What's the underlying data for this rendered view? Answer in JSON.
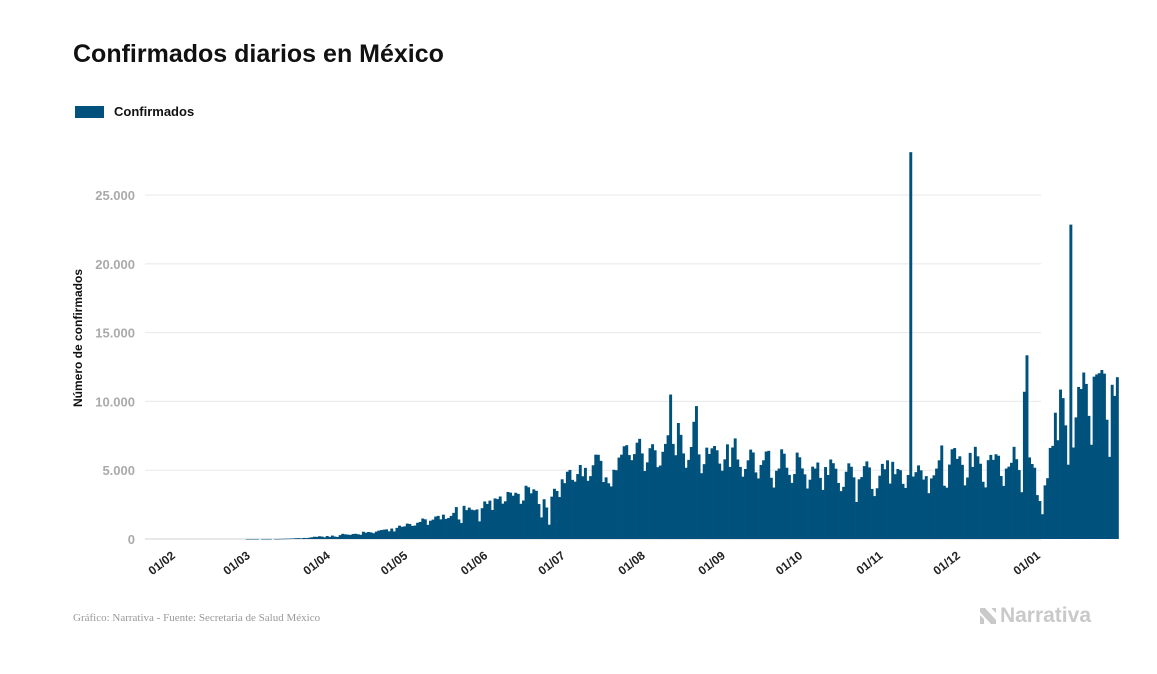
{
  "title": "Confirmados diarios en México",
  "legend": {
    "label": "Confirmados",
    "color": "#00527c"
  },
  "source": "Gráfico: Narrativa - Fuente: Secretaria de Salud México",
  "brand": "Narrativa",
  "brand_icon": "narrativa-n-icon",
  "chart_data": {
    "type": "bar",
    "title": "Confirmados diarios en México",
    "xlabel": "",
    "ylabel": "Número de confirmados",
    "x_domain": [
      "2020-01-20",
      "2021-01-01"
    ],
    "ylim": [
      0,
      29000
    ],
    "y_ticks": [
      0,
      5000,
      10000,
      15000,
      20000,
      25000
    ],
    "y_tick_labels": [
      "0",
      "5.000",
      "10.000",
      "15.000",
      "20.000",
      "25.000"
    ],
    "x_ticks": [
      "2020-02-01",
      "2020-03-01",
      "2020-04-01",
      "2020-05-01",
      "2020-06-01",
      "2020-07-01",
      "2020-08-01",
      "2020-09-01",
      "2020-10-01",
      "2020-11-01",
      "2020-12-01",
      "2021-01-01"
    ],
    "x_tick_labels": [
      "01/02",
      "01/03",
      "01/04",
      "01/05",
      "01/06",
      "01/07",
      "01/08",
      "01/09",
      "01/10",
      "01/11",
      "01/12",
      "01/01"
    ],
    "grid": true,
    "legend_position": "top-left",
    "color": "#00527c",
    "series": [
      {
        "name": "Confirmados",
        "start_date": "2020-02-28",
        "values": [
          1,
          1,
          1,
          1,
          2,
          0,
          1,
          2,
          2,
          4,
          0,
          4,
          6,
          14,
          17,
          22,
          26,
          40,
          45,
          60,
          63,
          48,
          78,
          65,
          92,
          125,
          164,
          155,
          200,
          178,
          121,
          215,
          155,
          250,
          178,
          145,
          280,
          378,
          340,
          320,
          298,
          362,
          380,
          345,
          306,
          530,
          460,
          510,
          480,
          420,
          538,
          610,
          650,
          680,
          700,
          560,
          760,
          550,
          810,
          970,
          890,
          920,
          1120,
          1090,
          950,
          980,
          1180,
          1240,
          1490,
          1430,
          1030,
          1330,
          1410,
          1630,
          1680,
          1430,
          1770,
          1460,
          1530,
          1680,
          1900,
          2320,
          1420,
          1160,
          2410,
          2100,
          2280,
          2130,
          2090,
          2150,
          1280,
          2240,
          2730,
          2550,
          2790,
          2110,
          2950,
          2900,
          3090,
          2570,
          2740,
          3420,
          3370,
          3150,
          3360,
          3280,
          2560,
          2800,
          3870,
          3760,
          3320,
          3610,
          3500,
          2540,
          1570,
          2890,
          2290,
          1040,
          3080,
          3650,
          3490,
          3050,
          4340,
          4060,
          4890,
          5020,
          4300,
          4170,
          4720,
          5380,
          4560,
          5170,
          4230,
          4570,
          5360,
          6130,
          6120,
          5680,
          4140,
          4480,
          4050,
          3820,
          5030,
          5000,
          5920,
          6130,
          6740,
          6820,
          6100,
          5730,
          6170,
          7000,
          7280,
          6220,
          4940,
          5570,
          6600,
          6890,
          6450,
          5220,
          5340,
          6340,
          6910,
          7540,
          10500,
          6910,
          6090,
          8430,
          7570,
          6220,
          5180,
          5750,
          6690,
          8520,
          9660,
          6150,
          4780,
          5440,
          6640,
          6180,
          6590,
          6760,
          6450,
          5480,
          4960,
          5790,
          6880,
          5240,
          6650,
          7310,
          5780,
          5240,
          4530,
          5090,
          5720,
          6500,
          6290,
          4840,
          4400,
          5380,
          5720,
          6360,
          6410,
          4450,
          3740,
          4960,
          5120,
          6520,
          6200,
          5180,
          4660,
          4080,
          4720,
          6280,
          5940,
          5130,
          4700,
          3670,
          4310,
          5260,
          5120,
          5560,
          4440,
          3570,
          5230,
          4650,
          5780,
          5510,
          5110,
          4070,
          3480,
          3790,
          4890,
          5500,
          5250,
          4480,
          2690,
          4340,
          4500,
          5300,
          5640,
          5200,
          3640,
          3120,
          3690,
          4600,
          5460,
          5070,
          5720,
          4030,
          5610,
          4710,
          5090,
          5000,
          4010,
          3710,
          4650,
          28115,
          4540,
          4860,
          5350,
          4990,
          4320,
          4570,
          3330,
          4400,
          4630,
          5120,
          5720,
          6800,
          3870,
          3730,
          5410,
          6520,
          6610,
          5820,
          6010,
          5390,
          3900,
          4470,
          6260,
          5240,
          6700,
          6010,
          5470,
          4160,
          3750,
          5730,
          6110,
          5750,
          6160,
          6050,
          4580,
          3860,
          5120,
          5260,
          5540,
          6700,
          5800,
          5010,
          3400,
          10700,
          13350,
          5930,
          5450,
          5180,
          3190,
          2760,
          1800,
          3900,
          4420,
          6620,
          6770,
          9180,
          7180,
          10860,
          10240,
          8260,
          5400,
          22850,
          6650,
          8840,
          11050,
          10900,
          12100,
          11270,
          8950,
          6850,
          11800,
          11960,
          12050,
          12280,
          12020,
          8670,
          5970,
          11210,
          10400,
          11760
        ]
      }
    ]
  }
}
